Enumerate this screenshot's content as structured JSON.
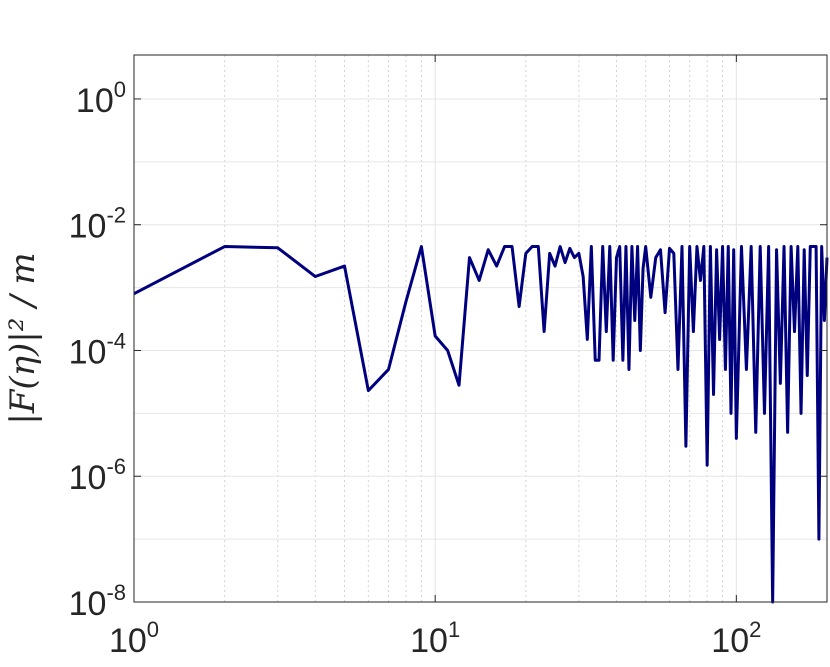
{
  "chart_data": {
    "type": "line",
    "xscale": "log",
    "yscale": "log",
    "xlim": [
      1,
      200
    ],
    "ylim": [
      1e-08,
      5
    ],
    "grid": true,
    "xlabel": "",
    "ylabel": "|F(η)|² / m",
    "x_ticks": [
      {
        "base": "10",
        "exp": "0",
        "value": 1
      },
      {
        "base": "10",
        "exp": "1",
        "value": 10
      },
      {
        "base": "10",
        "exp": "2",
        "value": 100
      }
    ],
    "y_ticks": [
      {
        "base": "10",
        "exp": "0",
        "value": 1
      },
      {
        "base": "10",
        "exp": "-2",
        "value": 0.01
      },
      {
        "base": "10",
        "exp": "-4",
        "value": 0.0001
      },
      {
        "base": "10",
        "exp": "-6",
        "value": 1e-06
      },
      {
        "base": "10",
        "exp": "-8",
        "value": 1e-08
      }
    ],
    "line_color": "#00007f",
    "series": [
      {
        "x": [
          1,
          2,
          3,
          4,
          5,
          6,
          7,
          8,
          9,
          10,
          11,
          12,
          13,
          14,
          15,
          16,
          17,
          18,
          19,
          20,
          21,
          22,
          23,
          24,
          25,
          26,
          27,
          28,
          29,
          30,
          31,
          32,
          33,
          34,
          35,
          36,
          37,
          38,
          39,
          40,
          41,
          42,
          43,
          44,
          45,
          46,
          47,
          48,
          49,
          50,
          52,
          54,
          56,
          58,
          60,
          62,
          64,
          66,
          68,
          70,
          72,
          74,
          76,
          78,
          80,
          82,
          84,
          86,
          88,
          90,
          92,
          94,
          96,
          98,
          100,
          104,
          108,
          112,
          116,
          120,
          124,
          128,
          132,
          136,
          140,
          144,
          148,
          152,
          156,
          160,
          164,
          168,
          172,
          176,
          180,
          184,
          188,
          192,
          196,
          200
        ],
        "y": [
          0.0008,
          0.0045,
          0.0043,
          0.0015,
          0.0022,
          2.3e-05,
          5e-05,
          0.0006,
          0.0045,
          0.00017,
          0.0001,
          2.8e-05,
          0.003,
          0.0013,
          0.004,
          0.0022,
          0.0045,
          0.0045,
          0.0005,
          0.0035,
          0.0045,
          0.0045,
          0.0002,
          0.0035,
          0.0022,
          0.0045,
          0.0025,
          0.0042,
          0.003,
          0.0035,
          0.0015,
          0.00015,
          0.0045,
          7e-05,
          7e-05,
          0.0045,
          0.0002,
          0.0045,
          7e-05,
          0.003,
          0.0045,
          7e-05,
          0.0045,
          5e-05,
          0.0045,
          0.0003,
          0.0045,
          0.0001,
          0.002,
          0.0045,
          0.0007,
          0.003,
          0.004,
          0.0004,
          0.0042,
          0.0035,
          5e-05,
          0.0045,
          3e-06,
          0.0045,
          0.0002,
          0.0045,
          0.0013,
          0.0045,
          1.5e-06,
          0.0045,
          2e-05,
          0.004,
          0.00015,
          0.0045,
          5e-05,
          0.0045,
          1e-05,
          0.004,
          4e-06,
          0.0045,
          5e-05,
          0.0045,
          5e-06,
          0.0045,
          1e-05,
          0.0045,
          1e-08,
          0.004,
          3e-05,
          0.0045,
          5e-06,
          0.0045,
          0.0002,
          0.0045,
          1e-05,
          0.004,
          4e-05,
          0.0045,
          0.0045,
          0.0045,
          1e-07,
          0.0045,
          0.0003,
          0.003
        ]
      }
    ]
  }
}
